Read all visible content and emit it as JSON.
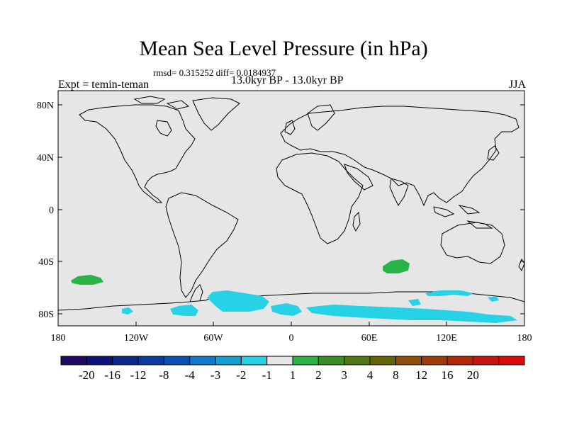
{
  "title": "Mean Sea Level Pressure (in hPa)",
  "stats_line": "rmsd= 0.315252 diff= 0.0184937",
  "experiment": "Expt = temin-teman",
  "period": "13.0kyr BP - 13.0kyr BP",
  "season": "JJA",
  "lat_ticks": [
    "80N",
    "40N",
    "0",
    "40S",
    "80S"
  ],
  "lon_ticks": [
    "180",
    "120W",
    "60W",
    "0",
    "60E",
    "120E",
    "180"
  ],
  "colorbar": {
    "labels": [
      "-20",
      "-16",
      "-12",
      "-8",
      "-4",
      "-3",
      "-2",
      "-1",
      "1",
      "2",
      "3",
      "4",
      "8",
      "12",
      "16",
      "20"
    ],
    "colors": [
      "#1e0a64",
      "#0a1478",
      "#0a288c",
      "#0a3ca0",
      "#0a50b4",
      "#1478c8",
      "#14a0d2",
      "#28d2e6",
      "#e6e6e6",
      "#28b446",
      "#3c8c28",
      "#507814",
      "#646400",
      "#8c500a",
      "#a03c0a",
      "#b4280a",
      "#c81414",
      "#dc0a0a"
    ]
  },
  "colors": {
    "ocean": "#e6e6e6",
    "positive_1_2": "#28b446",
    "negative_1_2": "#28d2e6",
    "coastline": "#000000"
  }
}
